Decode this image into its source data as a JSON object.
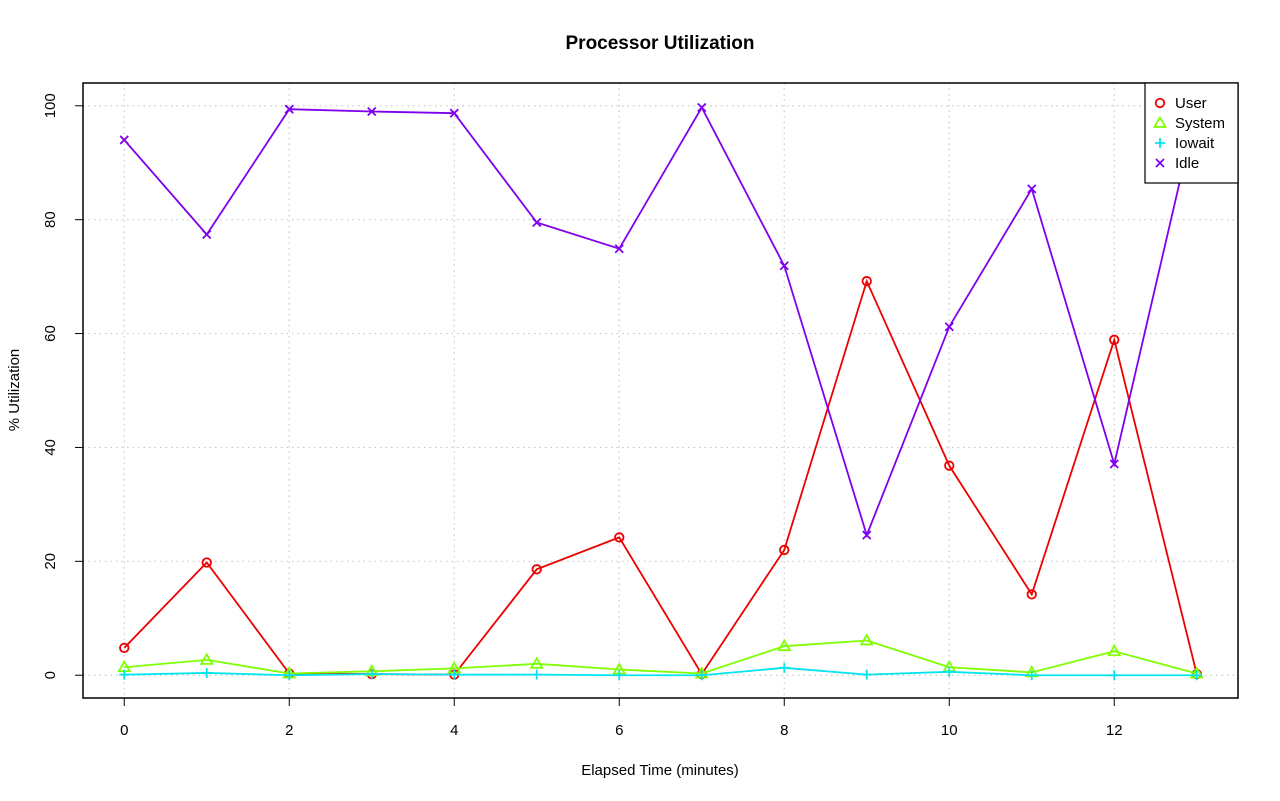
{
  "chart_data": {
    "type": "line",
    "title": "Processor Utilization",
    "xlabel": "Elapsed Time (minutes)",
    "ylabel": "% Utilization",
    "xlim": [
      -0.5,
      13.5
    ],
    "ylim": [
      -4,
      104
    ],
    "x_ticks": [
      0,
      2,
      4,
      6,
      8,
      10,
      12
    ],
    "y_ticks": [
      0,
      20,
      40,
      60,
      80,
      100
    ],
    "grid": true,
    "legend_position": "top-right",
    "x": [
      0,
      1,
      2,
      3,
      4,
      5,
      6,
      7,
      8,
      9,
      10,
      11,
      12,
      13
    ],
    "series": [
      {
        "name": "User",
        "color": "#ee0000",
        "marker": "circle",
        "values": [
          4.8,
          19.8,
          0.3,
          0.2,
          0.1,
          18.6,
          24.2,
          0.2,
          22.0,
          69.2,
          36.8,
          14.2,
          58.9,
          0.2
        ]
      },
      {
        "name": "System",
        "color": "#7fff00",
        "marker": "triangle",
        "values": [
          1.4,
          2.7,
          0.3,
          0.7,
          1.2,
          2.0,
          1.0,
          0.3,
          5.1,
          6.1,
          1.4,
          0.5,
          4.2,
          0.3
        ]
      },
      {
        "name": "Iowait",
        "color": "#00e5ee",
        "marker": "plus",
        "values": [
          0.1,
          0.4,
          0.0,
          0.2,
          0.1,
          0.1,
          0.0,
          0.0,
          1.3,
          0.1,
          0.6,
          0.0,
          0.0,
          0.0
        ]
      },
      {
        "name": "Idle",
        "color": "#7f00ee",
        "marker": "x",
        "values": [
          94.0,
          77.4,
          99.4,
          99.0,
          98.7,
          79.5,
          74.9,
          99.7,
          71.9,
          24.6,
          61.2,
          85.4,
          37.1,
          99.5
        ]
      }
    ]
  }
}
